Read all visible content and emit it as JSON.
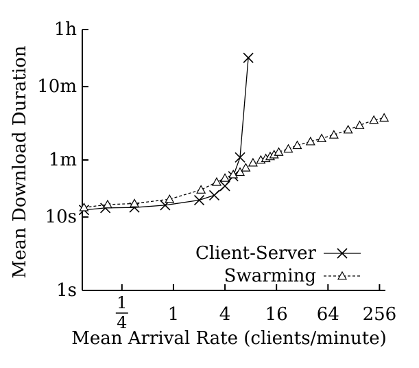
{
  "chart_data": {
    "type": "line",
    "title": "",
    "xlabel": "Mean Arrival Rate (clients/minute)",
    "ylabel": "Mean Download Duration",
    "x_scale": "log2",
    "y_scale": "log10",
    "xlim": [
      0.086,
      300
    ],
    "ylim": [
      1,
      3600
    ],
    "x_ticks": [
      {
        "value": 0.25,
        "label_num": "1",
        "label_den": "4"
      },
      {
        "value": 1,
        "label": "1"
      },
      {
        "value": 4,
        "label": "4"
      },
      {
        "value": 16,
        "label": "16"
      },
      {
        "value": 64,
        "label": "64"
      },
      {
        "value": 256,
        "label": "256"
      }
    ],
    "y_ticks": [
      {
        "value": 1,
        "label": "1s"
      },
      {
        "value": 10,
        "label": "10s"
      },
      {
        "value": 60,
        "label": "1m"
      },
      {
        "value": 600,
        "label": "10m"
      },
      {
        "value": 3600,
        "label": "1h"
      }
    ],
    "legend_position": "bottom-right",
    "series": [
      {
        "name": "Client-Server",
        "marker": "x",
        "line": "solid",
        "x": [
          0.09,
          0.16,
          0.35,
          0.8,
          2.0,
          3.0,
          4.0,
          5.0,
          6.0,
          7.5
        ],
        "y": [
          12.5,
          13.3,
          13.5,
          14.5,
          17.0,
          19.8,
          26.5,
          36.0,
          65.0,
          1480.0
        ]
      },
      {
        "name": "Swarming",
        "marker": "triangle",
        "line": "dashed",
        "x": [
          0.09,
          0.17,
          0.35,
          0.9,
          2.1,
          3.2,
          4.0,
          5.0,
          6.0,
          7.0,
          8.5,
          10.5,
          12.0,
          13.5,
          15.0,
          17.0,
          22.0,
          28.0,
          40.0,
          54.0,
          75.0,
          110.0,
          150.0,
          220.0,
          290.0
        ],
        "y": [
          13.5,
          14.8,
          15.3,
          17.5,
          23.5,
          30.0,
          34.0,
          38.0,
          41.0,
          47.0,
          55.0,
          60.0,
          63.0,
          67.0,
          71.0,
          77.0,
          85.0,
          95.0,
          107.0,
          118.0,
          132.0,
          155.0,
          178.0,
          210.0,
          225.0
        ]
      }
    ]
  }
}
